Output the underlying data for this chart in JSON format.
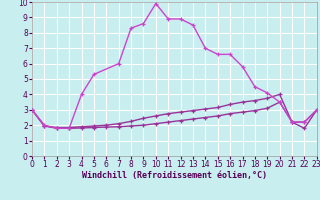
{
  "xlabel": "Windchill (Refroidissement éolien,°C)",
  "bg_color": "#c8eef0",
  "grid_color": "#ffffff",
  "line_color_dark": "#993399",
  "line_color_light": "#cc44cc",
  "xlim": [
    0,
    23
  ],
  "ylim": [
    0,
    10
  ],
  "xticks": [
    0,
    1,
    2,
    3,
    4,
    5,
    6,
    7,
    8,
    9,
    10,
    11,
    12,
    13,
    14,
    15,
    16,
    17,
    18,
    19,
    20,
    21,
    22,
    23
  ],
  "yticks": [
    0,
    1,
    2,
    3,
    4,
    5,
    6,
    7,
    8,
    9,
    10
  ],
  "curve1_x": [
    0,
    1,
    2,
    3,
    4,
    5,
    7,
    8,
    9,
    10,
    11,
    12,
    13,
    14,
    15,
    16,
    17,
    18,
    19,
    20,
    21,
    22,
    23
  ],
  "curve1_y": [
    3.0,
    2.0,
    1.8,
    1.8,
    4.0,
    5.3,
    6.0,
    8.3,
    8.6,
    9.9,
    8.9,
    8.9,
    8.5,
    7.0,
    6.6,
    6.6,
    5.8,
    4.5,
    4.1,
    3.5,
    2.2,
    2.2,
    3.0
  ],
  "curve2_x": [
    0,
    1,
    2,
    3,
    4,
    5,
    6,
    7,
    8,
    9,
    10,
    11,
    12,
    13,
    14,
    15,
    16,
    17,
    18,
    19,
    20,
    21,
    22,
    23
  ],
  "curve2_y": [
    3.0,
    1.95,
    1.85,
    1.85,
    1.9,
    1.95,
    2.0,
    2.1,
    2.25,
    2.45,
    2.6,
    2.75,
    2.85,
    2.95,
    3.05,
    3.15,
    3.35,
    3.5,
    3.6,
    3.75,
    4.0,
    2.2,
    2.2,
    3.0
  ],
  "curve3_x": [
    0,
    1,
    2,
    3,
    4,
    5,
    6,
    7,
    8,
    9,
    10,
    11,
    12,
    13,
    14,
    15,
    16,
    17,
    18,
    19,
    20,
    21,
    22,
    23
  ],
  "curve3_y": [
    3.0,
    1.95,
    1.8,
    1.8,
    1.82,
    1.85,
    1.88,
    1.9,
    1.95,
    2.0,
    2.1,
    2.2,
    2.3,
    2.4,
    2.5,
    2.6,
    2.75,
    2.85,
    2.95,
    3.1,
    3.5,
    2.2,
    1.8,
    3.0
  ],
  "tick_fontsize": 5.5,
  "xlabel_fontsize": 6,
  "linewidth": 1.0,
  "markersize": 3.5
}
